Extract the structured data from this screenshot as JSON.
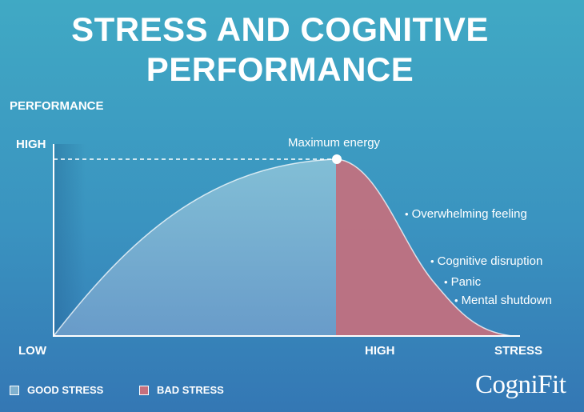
{
  "title": {
    "line1": "STRESS AND COGNITIVE",
    "line2": "PERFORMANCE"
  },
  "y_axis": {
    "label": "PERFORMANCE",
    "high_label": "HIGH"
  },
  "x_axis": {
    "low_label": "LOW",
    "high_label": "HIGH",
    "label": "STRESS"
  },
  "peak": {
    "label": "Maximum energy"
  },
  "annotations": [
    "Overwhelming feeling",
    "Cognitive disruption",
    "Panic",
    "Mental shutdown"
  ],
  "legend": {
    "good": {
      "label": "GOOD STRESS",
      "color": "#7fb1cf"
    },
    "bad": {
      "label": "BAD STRESS",
      "color": "#c5707e"
    }
  },
  "logo": {
    "text": "CogniFit"
  }
}
